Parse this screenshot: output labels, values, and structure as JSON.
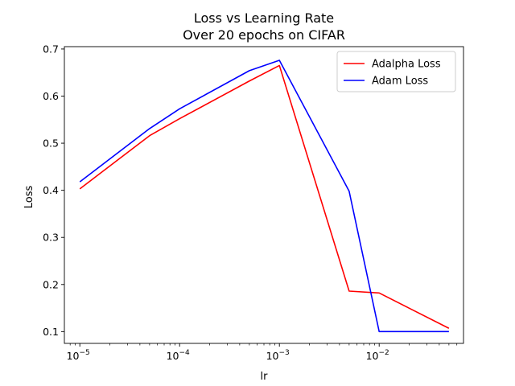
{
  "chart_data": {
    "type": "line",
    "title": "Loss vs Learning Rate",
    "subtitle": "Over 20 epochs on CIFAR",
    "xlabel": "lr",
    "ylabel": "Loss",
    "xscale": "log",
    "xlim": [
      7e-06,
      0.07
    ],
    "ylim": [
      0.075,
      0.705
    ],
    "x_ticks": [
      {
        "base": "10",
        "exp": "−5"
      },
      {
        "base": "10",
        "exp": "−4"
      },
      {
        "base": "10",
        "exp": "−3"
      },
      {
        "base": "10",
        "exp": "−2"
      }
    ],
    "y_ticks": [
      "0.1",
      "0.2",
      "0.3",
      "0.4",
      "0.5",
      "0.6",
      "0.7"
    ],
    "grid": false,
    "legend_position": "top-right",
    "series": [
      {
        "name": "Adalpha Loss",
        "color": "#ff0000",
        "x": [
          1e-05,
          5e-05,
          0.0001,
          0.0005,
          0.001,
          0.005,
          0.01,
          0.05
        ],
        "y": [
          0.403,
          0.516,
          0.552,
          0.632,
          0.665,
          0.186,
          0.182,
          0.107
        ]
      },
      {
        "name": "Adam Loss",
        "color": "#0000ff",
        "x": [
          1e-05,
          5e-05,
          0.0001,
          0.0005,
          0.001,
          0.005,
          0.01,
          0.05
        ],
        "y": [
          0.418,
          0.531,
          0.573,
          0.654,
          0.676,
          0.398,
          0.1,
          0.1
        ]
      }
    ]
  }
}
